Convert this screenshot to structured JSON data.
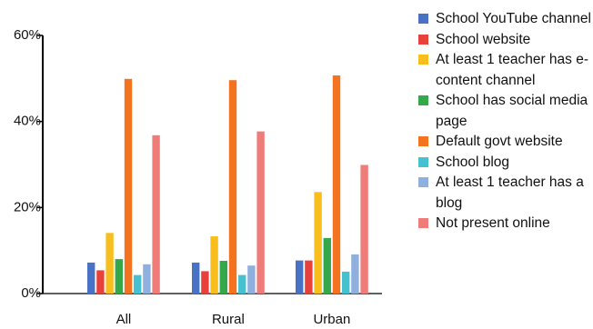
{
  "chart_data": {
    "type": "bar",
    "categories": [
      "All",
      "Rural",
      "Urban"
    ],
    "ylim": [
      0,
      60
    ],
    "yticks": [
      {
        "value": 0,
        "label": "0%"
      },
      {
        "value": 20,
        "label": "20%"
      },
      {
        "value": 40,
        "label": "40%"
      },
      {
        "value": 60,
        "label": "60%"
      }
    ],
    "legend_position": "right",
    "grid": false,
    "series": [
      {
        "name": "School YouTube channel",
        "color": "#4a72c4",
        "values": [
          7.2,
          7.2,
          7.7
        ]
      },
      {
        "name": "School website",
        "color": "#e8413b",
        "values": [
          5.4,
          5.2,
          7.7
        ]
      },
      {
        "name": "At least 1 teacher has e-content channel",
        "color": "#f7be1e",
        "values": [
          14.1,
          13.3,
          23.6
        ]
      },
      {
        "name": "School has social media page",
        "color": "#35a84b",
        "values": [
          8.0,
          7.6,
          12.9
        ]
      },
      {
        "name": "Default govt website",
        "color": "#f37321",
        "values": [
          49.9,
          49.6,
          50.7
        ]
      },
      {
        "name": "School blog",
        "color": "#46c1d0",
        "values": [
          4.3,
          4.3,
          5.1
        ]
      },
      {
        "name": "At least 1 teacher has a blog",
        "color": "#8fb0de",
        "values": [
          6.8,
          6.5,
          9.1
        ]
      },
      {
        "name": "Not present online",
        "color": "#f07c7a",
        "values": [
          36.8,
          37.7,
          29.9
        ]
      }
    ]
  }
}
